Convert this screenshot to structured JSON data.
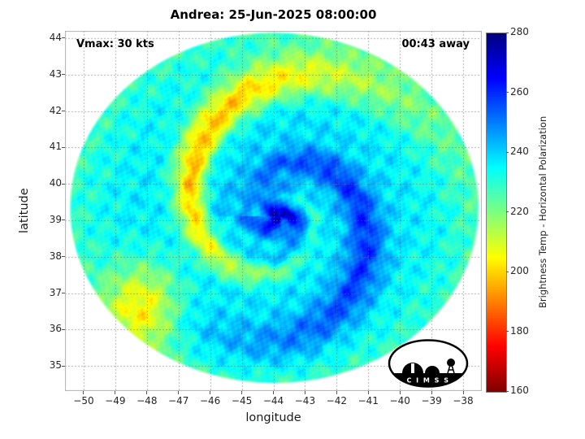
{
  "chart_data": {
    "type": "heatmap",
    "title": "Andrea: 25-Jun-2025 08:00:00",
    "xlabel": "longitude",
    "ylabel": "latitude",
    "xlim": [
      -50.59,
      -37.41
    ],
    "ylim": [
      34.31,
      44.2
    ],
    "xticks": [
      -50,
      -49,
      -48,
      -47,
      -46,
      -45,
      -44,
      -43,
      -42,
      -41,
      -40,
      -39,
      -38
    ],
    "yticks": [
      35,
      36,
      37,
      38,
      39,
      40,
      41,
      42,
      43,
      44
    ],
    "grid": true,
    "annotations": [
      {
        "text": "Vmax: 30 kts",
        "position": "top-left"
      },
      {
        "text": "00:43 away",
        "position": "top-right"
      }
    ],
    "colorbar": {
      "label": "Brightness Temp - Horizontal Polarization",
      "min": 160,
      "max": 280,
      "ticks": [
        160,
        180,
        200,
        220,
        240,
        260,
        280
      ],
      "colormap": "jet-reversed"
    },
    "storm": {
      "name": "Andrea",
      "vmax_kts": 30,
      "eye_lon": -43.8,
      "eye_lat": 39.1
    },
    "swath_disk": {
      "center_lon": -43.97,
      "center_lat": 39.34,
      "radius_lon_deg": 6.47,
      "radius_lat_deg": 4.82
    },
    "field_model": {
      "base_temp": 238,
      "lat_aspect": 1.12,
      "eye": {
        "lon": -43.8,
        "lat": 39.1,
        "core_amp": 26,
        "core_sigma": 0.5,
        "swirl_amp": 14,
        "swirl_sigma": 1.5
      },
      "warm_arm": {
        "pitch": 3.2,
        "phase": 0.0,
        "amp": 40,
        "width": 0.6,
        "r_center": 3.3,
        "r_sigma": 1.9
      },
      "inner_dark_arm": {
        "pitch": 3.2,
        "phase": 3.1416,
        "amp": 16,
        "width": 0.7,
        "r_center": 2.2,
        "r_sigma": 1.4
      },
      "outer_dark_arm": {
        "pitch": 3.2,
        "phase": 2.9,
        "amp": 12,
        "width": 0.8,
        "r_center": 3.5,
        "r_sigma": 1.2
      },
      "warm_blob": {
        "lon": -48.1,
        "lat": 36.7,
        "amp": 30,
        "sigma2": 1.4
      },
      "noise_amp": 5,
      "rim_cooling": 10
    }
  },
  "logo": {
    "text": "C I M S S"
  },
  "colors": {
    "background": "#ffffff",
    "grid": "#6e6e6e",
    "frame": "#b0b0b0",
    "text": "#1a1a1a",
    "colorbar_low": "#800000",
    "colorbar_high": "#000080"
  }
}
